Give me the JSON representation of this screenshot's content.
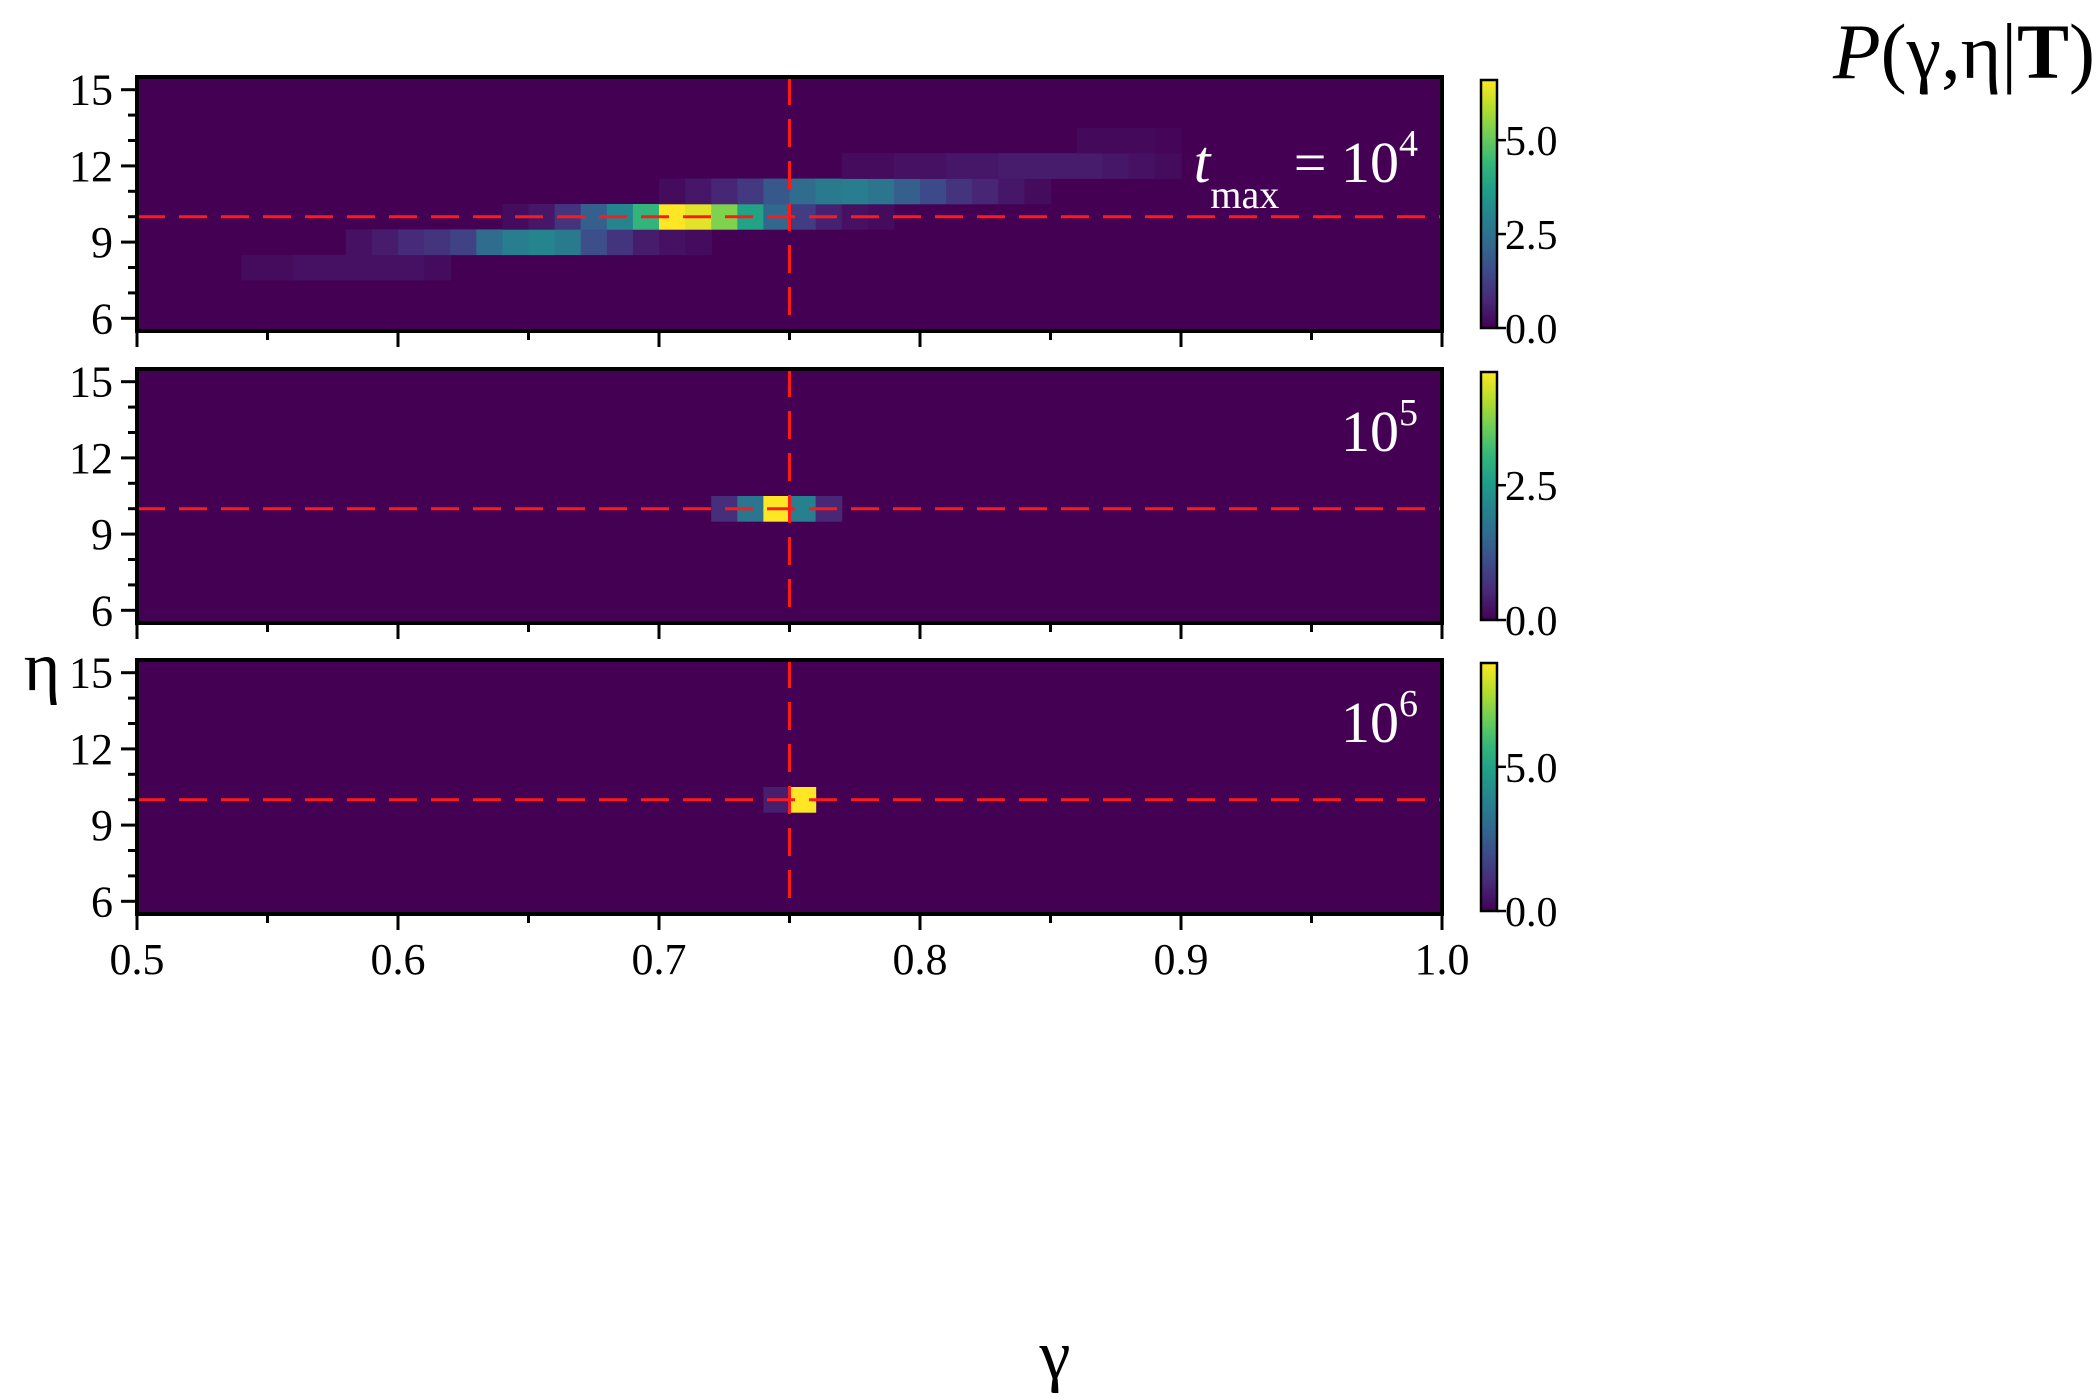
{
  "chart_data": {
    "type": "heatmap",
    "colormap": "viridis",
    "colorbar_title": "P(γ,η|T)",
    "xlabel": "γ",
    "ylabel": "η",
    "xlim": [
      0.5,
      1.0
    ],
    "ylim": [
      5.5,
      15.5
    ],
    "x_ticks": [
      "0.5",
      "0.6",
      "0.7",
      "0.8",
      "0.9",
      "1.0"
    ],
    "y_ticks": [
      "6",
      "9",
      "12",
      "15"
    ],
    "bin_size": {
      "gamma": 0.01,
      "eta": 1
    },
    "reference_lines": {
      "gamma": 0.75,
      "eta": 10,
      "style": "red dashed"
    },
    "panels": [
      {
        "label_main": "t",
        "label_sub": "max",
        "label_eq": " = 10",
        "label_exp": "4",
        "cbar_max": 6.6,
        "cbar_ticks": [
          "0.0",
          "2.5",
          "5.0"
        ],
        "cbar_tick_values": [
          0,
          2.5,
          5.0
        ],
        "cells": [
          [
            0.54,
            8,
            0.2
          ],
          [
            0.55,
            8,
            0.2
          ],
          [
            0.56,
            8,
            0.3
          ],
          [
            0.57,
            8,
            0.3
          ],
          [
            0.58,
            8,
            0.3
          ],
          [
            0.59,
            8,
            0.3
          ],
          [
            0.6,
            8,
            0.3
          ],
          [
            0.61,
            8,
            0.2
          ],
          [
            0.58,
            9,
            0.3
          ],
          [
            0.59,
            9,
            0.5
          ],
          [
            0.6,
            9,
            0.8
          ],
          [
            0.61,
            9,
            1.0
          ],
          [
            0.62,
            9,
            1.3
          ],
          [
            0.63,
            9,
            2.3
          ],
          [
            0.64,
            9,
            2.8
          ],
          [
            0.65,
            9,
            3.0
          ],
          [
            0.66,
            9,
            2.7
          ],
          [
            0.67,
            9,
            1.6
          ],
          [
            0.68,
            9,
            1.0
          ],
          [
            0.69,
            9,
            0.5
          ],
          [
            0.7,
            9,
            0.3
          ],
          [
            0.71,
            9,
            0.2
          ],
          [
            0.64,
            10,
            0.2
          ],
          [
            0.65,
            10,
            0.4
          ],
          [
            0.66,
            10,
            1.0
          ],
          [
            0.67,
            10,
            2.0
          ],
          [
            0.68,
            10,
            3.0
          ],
          [
            0.69,
            10,
            4.3
          ],
          [
            0.7,
            10,
            6.6
          ],
          [
            0.71,
            10,
            6.3
          ],
          [
            0.72,
            10,
            5.3
          ],
          [
            0.73,
            10,
            3.8
          ],
          [
            0.74,
            10,
            2.2
          ],
          [
            0.75,
            10,
            1.2
          ],
          [
            0.76,
            10,
            0.6
          ],
          [
            0.77,
            10,
            0.3
          ],
          [
            0.78,
            10,
            0.2
          ],
          [
            0.7,
            11,
            0.2
          ],
          [
            0.71,
            11,
            0.4
          ],
          [
            0.72,
            11,
            0.7
          ],
          [
            0.73,
            11,
            1.1
          ],
          [
            0.74,
            11,
            1.8
          ],
          [
            0.75,
            11,
            2.3
          ],
          [
            0.76,
            11,
            2.7
          ],
          [
            0.77,
            11,
            2.8
          ],
          [
            0.78,
            11,
            2.6
          ],
          [
            0.79,
            11,
            2.0
          ],
          [
            0.8,
            11,
            1.5
          ],
          [
            0.81,
            11,
            1.0
          ],
          [
            0.82,
            11,
            0.7
          ],
          [
            0.83,
            11,
            0.4
          ],
          [
            0.84,
            11,
            0.2
          ],
          [
            0.77,
            12,
            0.2
          ],
          [
            0.78,
            12,
            0.2
          ],
          [
            0.79,
            12,
            0.3
          ],
          [
            0.8,
            12,
            0.3
          ],
          [
            0.81,
            12,
            0.4
          ],
          [
            0.82,
            12,
            0.4
          ],
          [
            0.83,
            12,
            0.5
          ],
          [
            0.84,
            12,
            0.5
          ],
          [
            0.85,
            12,
            0.5
          ],
          [
            0.86,
            12,
            0.5
          ],
          [
            0.87,
            12,
            0.4
          ],
          [
            0.88,
            12,
            0.3
          ],
          [
            0.89,
            12,
            0.2
          ],
          [
            0.86,
            13,
            0.15
          ],
          [
            0.87,
            13,
            0.15
          ],
          [
            0.88,
            13,
            0.15
          ],
          [
            0.89,
            13,
            0.1
          ]
        ]
      },
      {
        "label_main": "10",
        "label_exp": "5",
        "cbar_max": 4.6,
        "cbar_ticks": [
          "0.0",
          "2.5"
        ],
        "cbar_tick_values": [
          0,
          2.5
        ],
        "cells": [
          [
            0.72,
            10,
            0.6
          ],
          [
            0.73,
            10,
            1.8
          ],
          [
            0.74,
            10,
            4.6
          ],
          [
            0.75,
            10,
            2.0
          ],
          [
            0.76,
            10,
            0.5
          ]
        ]
      },
      {
        "label_main": "10",
        "label_exp": "6",
        "cbar_max": 8.6,
        "cbar_ticks": [
          "0.0",
          "5.0"
        ],
        "cbar_tick_values": [
          0,
          5.0
        ],
        "cells": [
          [
            0.74,
            10,
            0.7
          ],
          [
            0.75,
            10,
            8.6
          ]
        ]
      }
    ]
  }
}
